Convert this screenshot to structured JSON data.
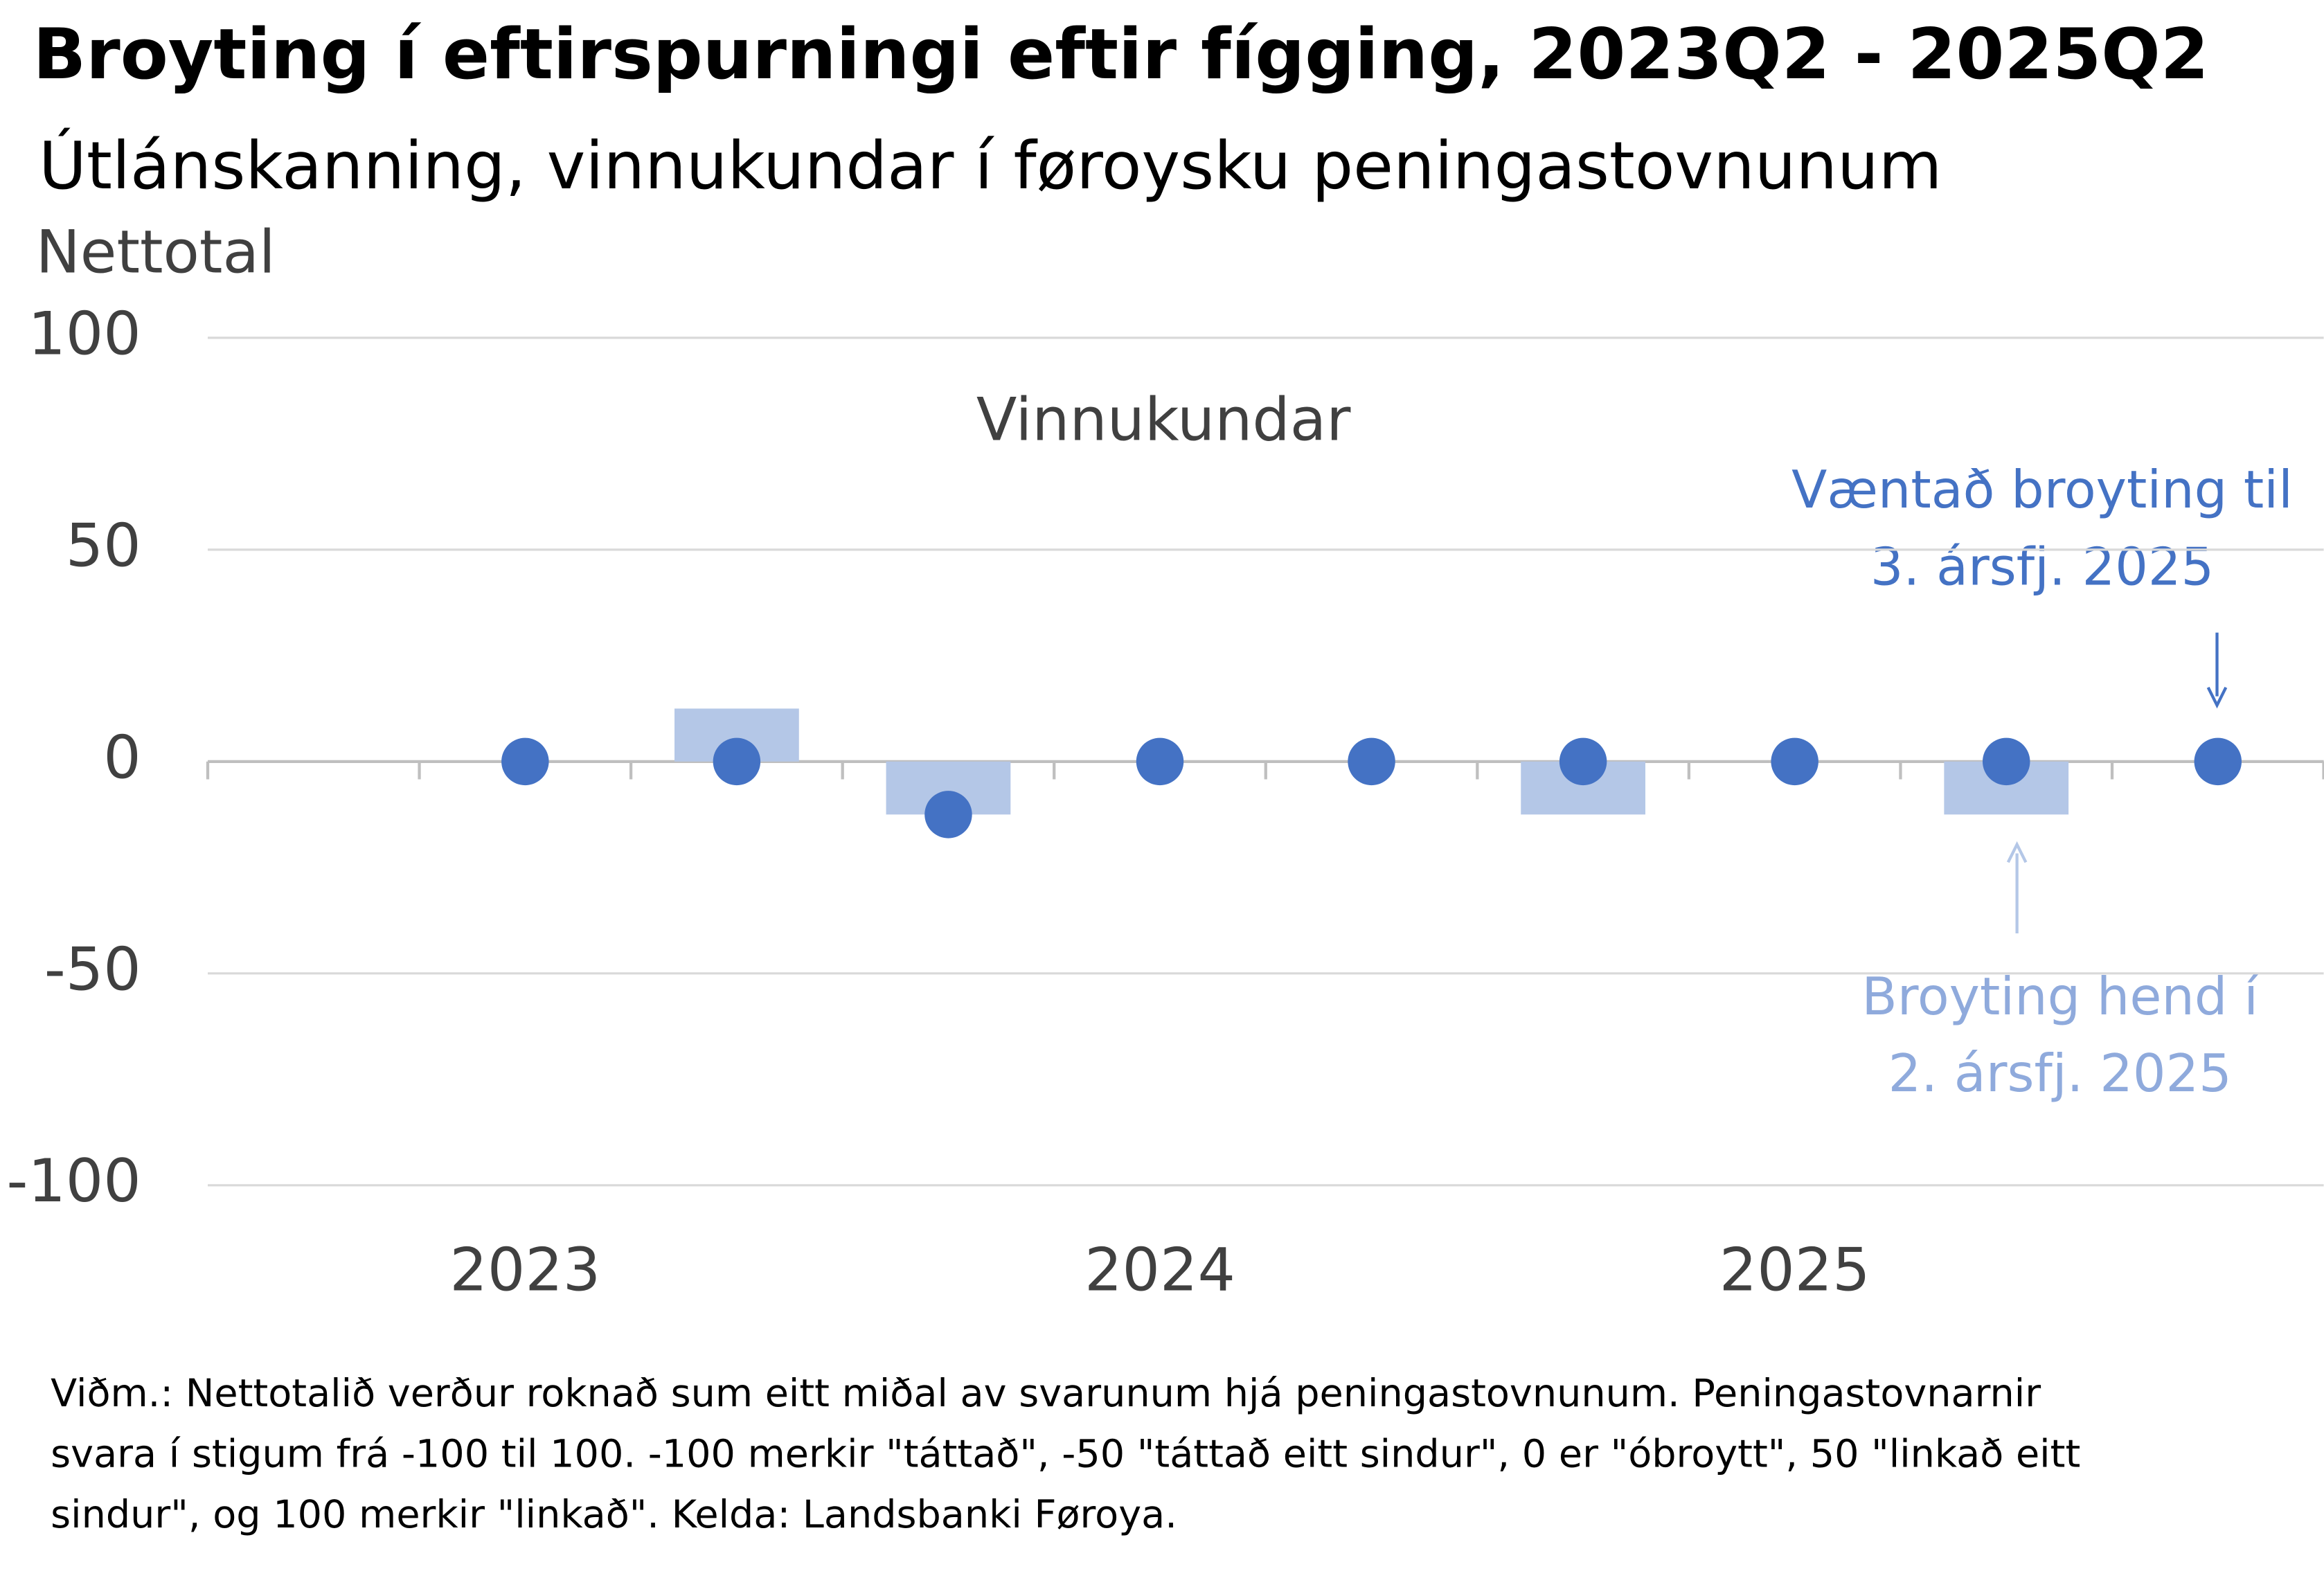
{
  "chart_data": {
    "type": "bar_dot",
    "title": "Broyting í eftirspurningi eftir fígging, 2023Q2 - 2025Q2",
    "subtitle": "Útlánskanning, vinnukundar í føroysku peningastovnunum",
    "y_label": "Nettotal",
    "panel_label": "Vinnukundar",
    "categories": [
      null,
      "2023",
      null,
      null,
      "2024",
      null,
      null,
      "2025",
      null,
      null
    ],
    "series": [
      {
        "kind": "bar",
        "color": "#b4c7e7",
        "values": [
          null,
          0,
          12.5,
          -12.5,
          0,
          0,
          -12.5,
          0,
          -12.5,
          null
        ]
      },
      {
        "kind": "dot",
        "color": "#4472c4",
        "values": [
          null,
          0,
          0,
          -12.5,
          0,
          0,
          0,
          0,
          0,
          0
        ]
      }
    ],
    "ylim": [
      -100,
      100
    ],
    "yticks": [
      -100,
      -50,
      0,
      50,
      100
    ],
    "grid": true,
    "annotations": [
      {
        "lines": [
          "Væntað broyting til",
          "3. ársfj. 2025"
        ],
        "color": "#4472c4"
      },
      {
        "lines": [
          "Broyting hend í",
          "2. ársfj. 2025"
        ],
        "color": "#8faadc"
      }
    ],
    "note": [
      "Viðm.: Nettotalið verður roknað sum eitt miðal av svarunum hjá peningastovnunum. Peningastovnarnir",
      "svara í stigum frá -100 til 100. -100 merkir \"táttað\", -50 \"táttað eitt sindur\", 0 er \"óbroytt\", 50 \"linkað eitt",
      "sindur\", og 100 merkir \"linkað\". Kelda: Landsbanki Føroya."
    ]
  }
}
